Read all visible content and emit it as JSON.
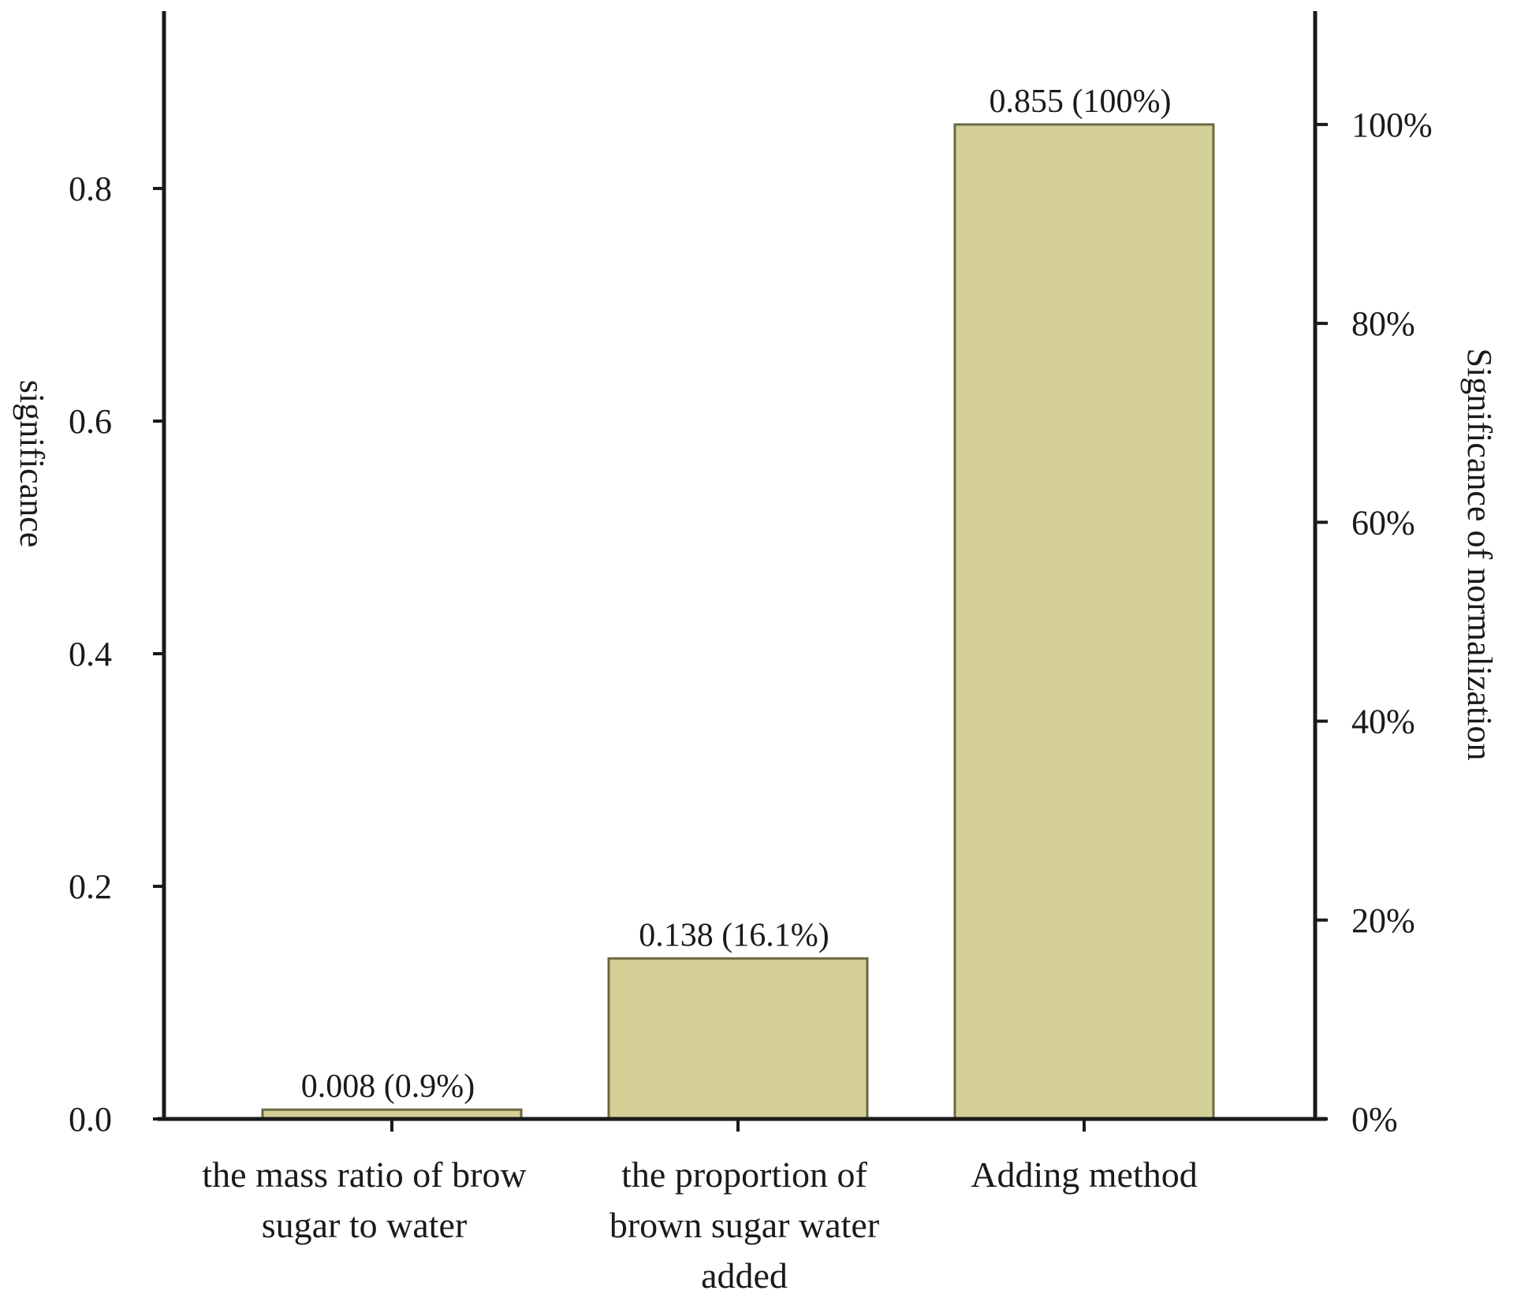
{
  "chart_data": {
    "type": "bar",
    "categories": [
      [
        "the mass ratio of brow",
        "sugar to water"
      ],
      [
        "the proportion of",
        "brown sugar water",
        "added"
      ],
      [
        "Adding method"
      ]
    ],
    "values": [
      0.008,
      0.138,
      0.855
    ],
    "data_labels": [
      "0.008  (0.9%)",
      "0.138  (16.1%)",
      "0.855 (100%)"
    ],
    "title": "",
    "ylabel": "significance",
    "y2label": "Significance of normalization",
    "ylim": [
      0,
      0.95
    ],
    "yticks": [
      0.0,
      0.2,
      0.4,
      0.6,
      0.8
    ],
    "ytick_labels": [
      "0.0",
      "0.2",
      "0.4",
      "0.6",
      "0.8"
    ],
    "y2ticks": [
      0,
      20,
      40,
      60,
      80,
      100
    ],
    "y2tick_labels": [
      "0%",
      "20%",
      "40%",
      "60%",
      "80%",
      "100%"
    ],
    "y2_reference_value": 0.855,
    "bar_color": "#d4cf96",
    "grid": false,
    "legend": "none"
  }
}
